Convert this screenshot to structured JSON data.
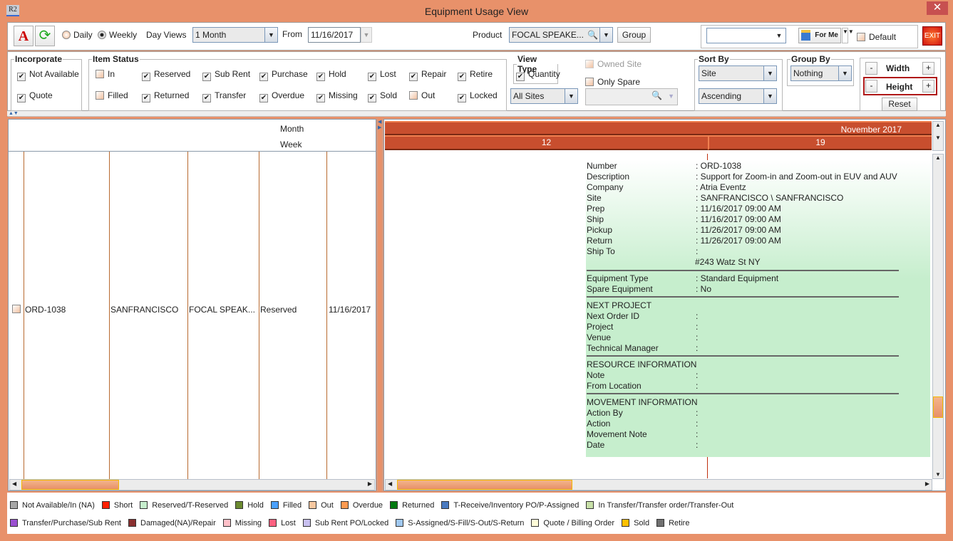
{
  "window": {
    "title": "Equipment Usage View",
    "app_icon": "R2",
    "close": "✕"
  },
  "toolbar": {
    "daily": "Daily",
    "weekly": "Weekly",
    "view_mode": "Weekly",
    "day_views_label": "Day Views",
    "day_views_value": "1 Month",
    "from_label": "From",
    "from_value": "11/16/2017",
    "product_label": "Product",
    "product_value": "FOCAL SPEAKE...",
    "group_button": "Group",
    "preset_value": "",
    "for_me": "For Me",
    "default_label": "Default",
    "default_checked": false,
    "exit": "EXIT"
  },
  "incorporate": {
    "title": "Incorporate",
    "items": [
      {
        "label": "Not Available",
        "checked": true
      },
      {
        "label": "Quote",
        "checked": true
      }
    ]
  },
  "item_status": {
    "title": "Item Status",
    "items": [
      {
        "label": "In",
        "checked": false
      },
      {
        "label": "Reserved",
        "checked": true
      },
      {
        "label": "Sub Rent",
        "checked": true
      },
      {
        "label": "Purchase",
        "checked": true
      },
      {
        "label": "Hold",
        "checked": true
      },
      {
        "label": "Lost",
        "checked": true
      },
      {
        "label": "Repair",
        "checked": true
      },
      {
        "label": "Retire",
        "checked": true
      },
      {
        "label": "Filled",
        "checked": false
      },
      {
        "label": "Returned",
        "checked": true
      },
      {
        "label": "Transfer",
        "checked": true
      },
      {
        "label": "Overdue",
        "checked": true
      },
      {
        "label": "Missing",
        "checked": true
      },
      {
        "label": "Sold",
        "checked": true
      },
      {
        "label": "Out",
        "checked": false
      },
      {
        "label": "Locked",
        "checked": true
      }
    ]
  },
  "view_type": {
    "title": "View Type",
    "quantity": "Quantity",
    "quantity_checked": true,
    "sites": "All Sites",
    "owned_site": "Owned Site",
    "only_spare": "Only Spare",
    "spare_value": ""
  },
  "sort_by": {
    "title": "Sort By",
    "field": "Site",
    "order": "Ascending"
  },
  "group_by": {
    "title": "Group By",
    "value": "Nothing"
  },
  "size": {
    "minus": "-",
    "plus": "+",
    "width": "Width",
    "height": "Height",
    "reset": "Reset"
  },
  "grid": {
    "month_label": "Month",
    "week_label": "Week",
    "month": "November 2017",
    "weeks": [
      "12",
      "19"
    ],
    "row": {
      "order": "ORD-1038",
      "site": "SANFRANCISCO",
      "product": "FOCAL SPEAK...",
      "status": "Reserved",
      "date": "11/16/2017"
    }
  },
  "tooltip": {
    "rows": [
      {
        "label": "Number",
        "value": ": ORD-1038"
      },
      {
        "label": "Description",
        "value": ": Support for Zoom-in and Zoom-out in EUV and AUV"
      },
      {
        "label": "Company",
        "value": ": Atria Eventz"
      },
      {
        "label": "Site",
        "value": ": SANFRANCISCO \\ SANFRANCISCO"
      },
      {
        "label": "Prep",
        "value": ": 11/16/2017 09:00 AM"
      },
      {
        "label": "Ship",
        "value": ": 11/16/2017 09:00 AM"
      },
      {
        "label": "Pickup",
        "value": ": 11/26/2017 09:00 AM"
      },
      {
        "label": "Return",
        "value": ": 11/26/2017 09:00 AM"
      },
      {
        "label": "Ship To",
        "value": ":"
      },
      {
        "label": "",
        "value": "#243 Watz St NY"
      },
      {
        "label": "Equipment Type",
        "value": ": Standard Equipment"
      },
      {
        "label": "Spare Equipment",
        "value": ": No"
      },
      {
        "label": "NEXT PROJECT",
        "value": ""
      },
      {
        "label": "Next Order ID",
        "value": ":"
      },
      {
        "label": "Project",
        "value": ":"
      },
      {
        "label": "Venue",
        "value": ":"
      },
      {
        "label": "Technical Manager",
        "value": ":"
      },
      {
        "label": "RESOURCE INFORMATION",
        "value": ""
      },
      {
        "label": "Note",
        "value": ":"
      },
      {
        "label": "From Location",
        "value": ":"
      },
      {
        "label": "MOVEMENT INFORMATION",
        "value": ""
      },
      {
        "label": "Action By",
        "value": ":"
      },
      {
        "label": "Action",
        "value": ":"
      },
      {
        "label": "Movement Note",
        "value": ":"
      },
      {
        "label": "Date",
        "value": ":"
      }
    ]
  },
  "legend": [
    {
      "label": "Not Available/In (NA)",
      "color": "#a8a8a8"
    },
    {
      "label": "Short",
      "color": "#ff2000"
    },
    {
      "label": "Reserved/T-Reserved",
      "color": "#c6eecd"
    },
    {
      "label": "Hold",
      "color": "#6b8a30"
    },
    {
      "label": "Filled",
      "color": "#4aa0ff"
    },
    {
      "label": "Out",
      "color": "#f8c8a0"
    },
    {
      "label": "Overdue",
      "color": "#ff9a50"
    },
    {
      "label": "Returned",
      "color": "#007a10"
    },
    {
      "label": "T-Receive/Inventory PO/P-Assigned",
      "color": "#4a7ac0"
    },
    {
      "label": "In Transfer/Transfer order/Transfer-Out",
      "color": "#c8e0a8"
    },
    {
      "label": "Transfer/Purchase/Sub Rent",
      "color": "#9a50d0"
    },
    {
      "label": "Damaged(NA)/Repair",
      "color": "#8a3030"
    },
    {
      "label": "Missing",
      "color": "#ffc0c8"
    },
    {
      "label": "Lost",
      "color": "#ff6080"
    },
    {
      "label": "Sub Rent PO/Locked",
      "color": "#c8c0f0"
    },
    {
      "label": "S-Assigned/S-Fill/S-Out/S-Return",
      "color": "#a0c8f0"
    },
    {
      "label": "Quote / Billing Order",
      "color": "#fffcd8"
    },
    {
      "label": "Sold",
      "color": "#ffc000"
    },
    {
      "label": "Retire",
      "color": "#707070"
    }
  ]
}
